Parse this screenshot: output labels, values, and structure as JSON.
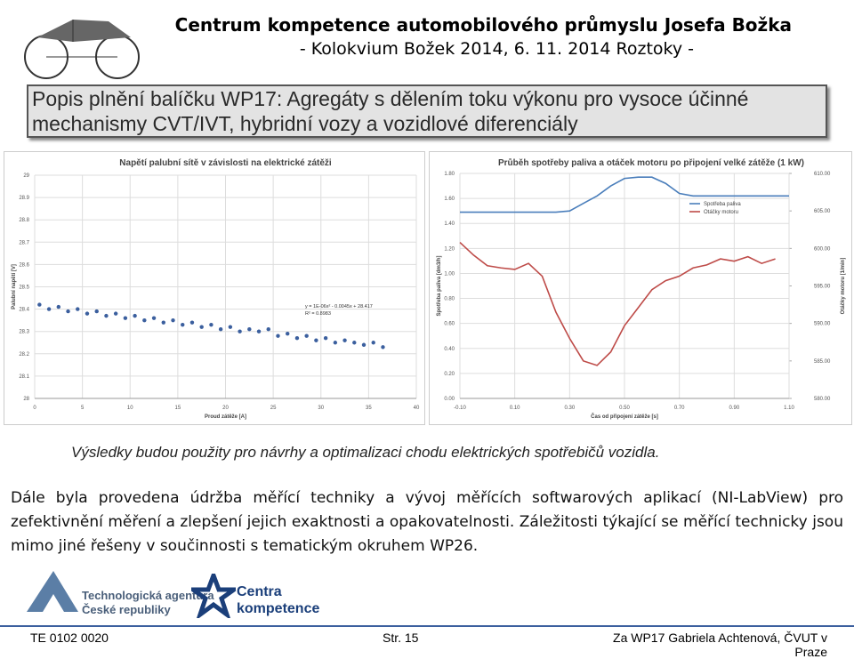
{
  "header": {
    "title": "Centrum kompetence automobilového průmyslu Josefa Božka",
    "subtitle": "- Kolokvium Božek 2014, 6. 11. 2014 Roztoky -"
  },
  "banner": "Popis plnění balíčku WP17: Agregáty s dělením toku výkonu pro vysoce účinné mechanismy CVT/IVT, hybridní vozy a vozidlové diferenciály",
  "chart_data": [
    {
      "type": "scatter",
      "title": "Napětí palubní sítě v závislosti na elektrické zátěži",
      "x_label": "Proud zátěže [A]",
      "y_label": "Palubní napětí [V]",
      "annotations": [
        "y = 1E-06x² - 0.0045x + 28.417",
        "R² = 0.8983"
      ],
      "color": "#3b5f9e",
      "grid": true,
      "x": [
        0.5,
        1.5,
        2.5,
        3.5,
        4.5,
        5.5,
        6.5,
        7.5,
        8.5,
        9.5,
        10.5,
        11.5,
        12.5,
        13.5,
        14.5,
        15.5,
        16.5,
        17.5,
        18.5,
        19.5,
        20.5,
        21.5,
        22.5,
        23.5,
        24.5,
        25.5,
        26.5,
        27.5,
        28.5,
        29.5,
        30.5,
        31.5,
        32.5,
        33.5,
        34.5,
        35.5,
        36.5
      ],
      "values": [
        28.42,
        28.4,
        28.41,
        28.39,
        28.4,
        28.38,
        28.39,
        28.37,
        28.38,
        28.36,
        28.37,
        28.35,
        28.36,
        28.34,
        28.35,
        28.33,
        28.34,
        28.32,
        28.33,
        28.31,
        28.32,
        28.3,
        28.31,
        28.3,
        28.31,
        28.28,
        28.29,
        28.27,
        28.28,
        28.26,
        28.27,
        28.25,
        28.26,
        28.25,
        28.24,
        28.25,
        28.23
      ],
      "xlim": [
        0,
        40
      ],
      "xticks": [
        0,
        5,
        10,
        15,
        20,
        25,
        30,
        35,
        40
      ],
      "ylim": [
        28,
        29
      ],
      "yticks": [
        28,
        28.1,
        28.2,
        28.3,
        28.4,
        28.5,
        28.6,
        28.7,
        28.8,
        28.9,
        29
      ]
    },
    {
      "type": "line",
      "title": "Průběh spotřeby paliva a otáček motoru po připojení velké zátěže (1 kW)",
      "x_label": "Čas od připojení zátěže [s]",
      "y_label": "Spotřeba paliva [dm3/h]",
      "y2_label": "Otáčky motoru [1/min]",
      "grid": true,
      "legend": "top-right",
      "x": [
        -0.1,
        -0.05,
        0,
        0.05,
        0.1,
        0.15,
        0.2,
        0.25,
        0.3,
        0.35,
        0.4,
        0.45,
        0.5,
        0.55,
        0.6,
        0.65,
        0.7,
        0.75,
        0.8,
        0.85,
        0.9,
        0.95,
        1.0,
        1.05,
        1.1
      ],
      "series": [
        {
          "name": "Spotřeba paliva",
          "color": "#4a7ebb",
          "values": [
            1.49,
            1.49,
            1.49,
            1.49,
            1.49,
            1.49,
            1.49,
            1.49,
            1.5,
            1.56,
            1.62,
            1.7,
            1.76,
            1.77,
            1.77,
            1.72,
            1.64,
            1.62,
            1.62,
            1.62,
            1.62,
            1.62,
            1.62,
            1.62,
            1.62
          ]
        },
        {
          "name": "Otáčky motoru",
          "color": "#be4b48",
          "axis": "y2",
          "values": [
            600.8,
            599.1,
            597.7,
            597.4,
            597.2,
            598,
            596.3,
            591.5,
            588,
            585,
            584.4,
            586.2,
            589.7,
            592.1,
            594.5,
            595.7,
            596.3,
            597.4,
            597.8,
            598.6,
            598.3,
            598.9,
            598,
            598.6,
            null
          ]
        }
      ],
      "xlim": [
        -0.1,
        1.1
      ],
      "xticks": [
        {
          "value": -0.1,
          "label": "-0.10"
        },
        {
          "value": 0.1,
          "label": "0.10"
        },
        {
          "value": 0.3,
          "label": "0.30"
        },
        {
          "value": 0.5,
          "label": "0.50"
        },
        {
          "value": 0.7,
          "label": "0.70"
        },
        {
          "value": 0.9,
          "label": "0.90"
        },
        {
          "value": 1.1,
          "label": "1.10"
        }
      ],
      "ylim": [
        0,
        1.8
      ],
      "yticks": [
        {
          "value": 0,
          "label": "0.00"
        },
        {
          "value": 0.2,
          "label": "0.20"
        },
        {
          "value": 0.4,
          "label": "0.40"
        },
        {
          "value": 0.6,
          "label": "0.60"
        },
        {
          "value": 0.8,
          "label": "0.80"
        },
        {
          "value": 1,
          "label": "1.00"
        },
        {
          "value": 1.2,
          "label": "1.20"
        },
        {
          "value": 1.4,
          "label": "1.40"
        },
        {
          "value": 1.6,
          "label": "1.60"
        },
        {
          "value": 1.8,
          "label": "1.80"
        }
      ],
      "y2lim": [
        580,
        610
      ],
      "y2ticks": [
        {
          "value": 580,
          "label": "580.00"
        },
        {
          "value": 585,
          "label": "585.00"
        },
        {
          "value": 590,
          "label": "590.00"
        },
        {
          "value": 595,
          "label": "595.00"
        },
        {
          "value": 600,
          "label": "600.00"
        },
        {
          "value": 605,
          "label": "605.00"
        },
        {
          "value": 610,
          "label": "610.00"
        }
      ]
    }
  ],
  "caption": "Výsledky budou použity pro návrhy a optimalizaci chodu elektrických spotřebičů vozidla.",
  "body": "Dále byla provedena údržba měřící techniky a vývoj měřících softwarových aplikací (NI-LabView) pro zefektivnění měření a zlepšení jejich exaktnosti a opakovatelnosti. Záležitosti týkající se měřící technicky jsou mimo jiné řešeny v součinnosti s tematickým okruhem WP26.",
  "logos": {
    "tacr": [
      "Technologická agentura",
      "České republiky"
    ],
    "centra": [
      "Centra",
      "kompetence"
    ]
  },
  "footer": {
    "left": "TE 0102 0020",
    "center": "Str. 15",
    "right": "Za WP17 Gabriela Achtenová, ČVUT v Praze"
  }
}
